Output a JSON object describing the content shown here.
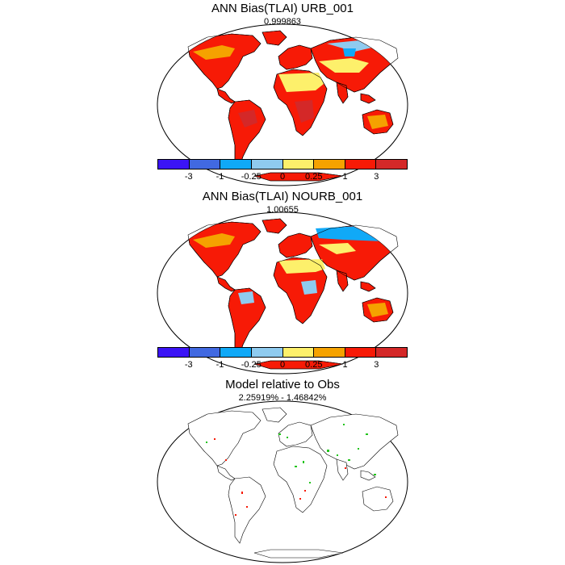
{
  "panels": [
    {
      "title": "ANN Bias(TLAI) URB_001",
      "subtitle": "0.999863"
    },
    {
      "title": "ANN Bias(TLAI) NOURB_001",
      "subtitle": "1.00655"
    },
    {
      "title": "Model relative to Obs",
      "subtitle": "2.25919% - 1.46842%"
    }
  ],
  "colorbar": {
    "colors": [
      "#3b14f5",
      "#4169e1",
      "#10a9f7",
      "#8fcbef",
      "#fdf06b",
      "#f5a200",
      "#f71a06",
      "#d42828"
    ],
    "labels": [
      "-3",
      "-1",
      "-0.25",
      "0",
      "0.25",
      "1",
      "3"
    ]
  },
  "map_colors": {
    "ocean": "#ffffff",
    "coast": "#000000",
    "yellow": "#fdf06b",
    "orange": "#f5a200",
    "red": "#f71a06",
    "darkred": "#d42828",
    "lightblue": "#8fcbef",
    "blue": "#10a9f7",
    "green": "#22c41c"
  }
}
